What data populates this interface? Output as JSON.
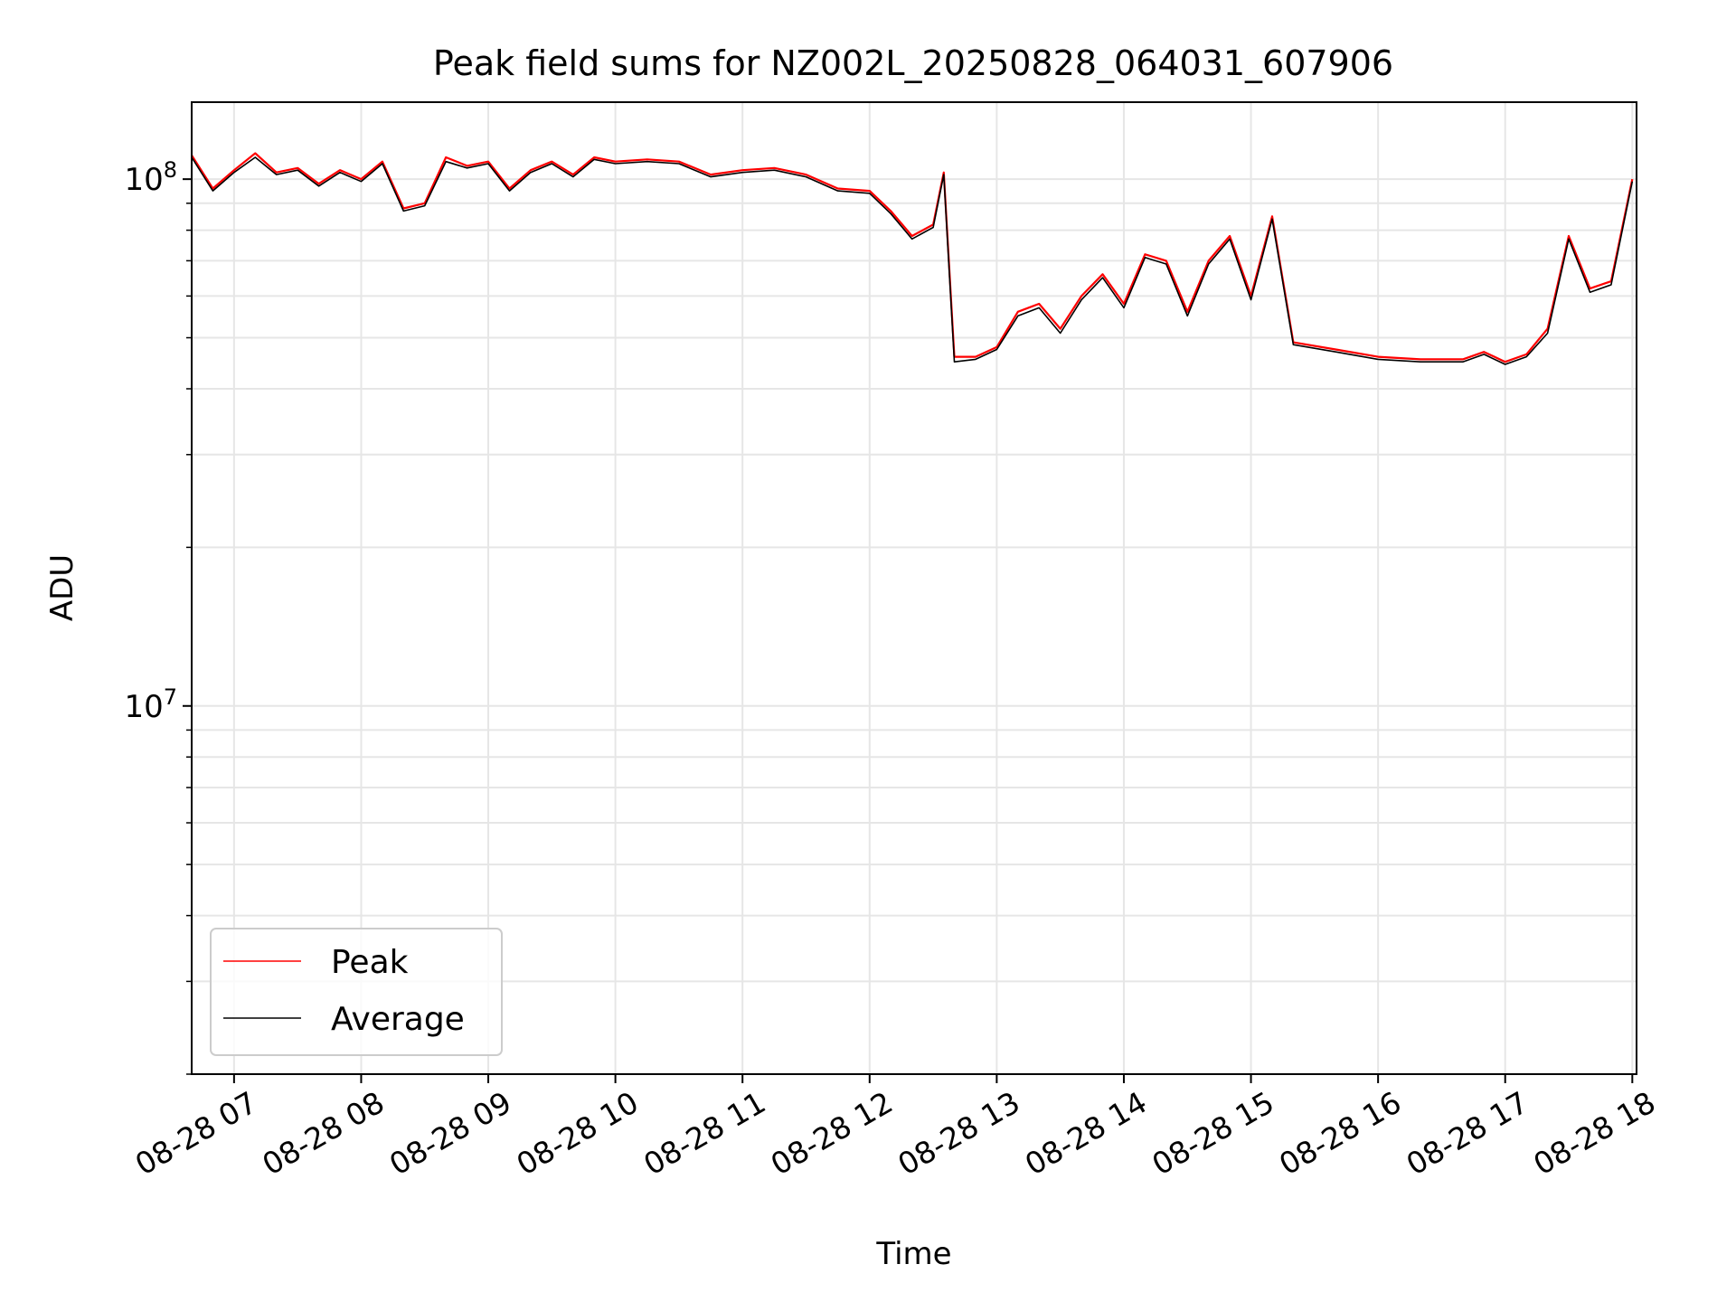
{
  "chart_data": {
    "type": "line",
    "title": "Peak field sums for NZ002L_20250828_064031_607906",
    "xlabel": "Time",
    "ylabel": "ADU",
    "yscale": "log",
    "ylim": [
      2000000,
      140000000
    ],
    "xlim": [
      "2025-08-28 06:40",
      "2025-08-28 18:02"
    ],
    "grid": true,
    "legend_position": "lower-left",
    "x_tick_labels": [
      "08-28 07",
      "08-28 08",
      "08-28 09",
      "08-28 10",
      "08-28 11",
      "08-28 12",
      "08-28 13",
      "08-28 14",
      "08-28 15",
      "08-28 16",
      "08-28 17",
      "08-28 18"
    ],
    "y_tick_labels": [
      {
        "base": "10",
        "exp": "7",
        "value": 10000000
      },
      {
        "base": "10",
        "exp": "8",
        "value": 100000000
      }
    ],
    "colors": {
      "Peak": "#ff0000",
      "Average": "#000000",
      "grid": "#e6e6e6"
    },
    "x": [
      "08-28 06:40",
      "08-28 06:50",
      "08-28 07:00",
      "08-28 07:10",
      "08-28 07:20",
      "08-28 07:30",
      "08-28 07:40",
      "08-28 07:50",
      "08-28 08:00",
      "08-28 08:10",
      "08-28 08:20",
      "08-28 08:30",
      "08-28 08:40",
      "08-28 08:50",
      "08-28 09:00",
      "08-28 09:10",
      "08-28 09:20",
      "08-28 09:30",
      "08-28 09:40",
      "08-28 09:50",
      "08-28 10:00",
      "08-28 10:15",
      "08-28 10:30",
      "08-28 10:45",
      "08-28 11:00",
      "08-28 11:15",
      "08-28 11:30",
      "08-28 11:45",
      "08-28 12:00",
      "08-28 12:10",
      "08-28 12:20",
      "08-28 12:30",
      "08-28 12:35",
      "08-28 12:40",
      "08-28 12:50",
      "08-28 13:00",
      "08-28 13:10",
      "08-28 13:20",
      "08-28 13:30",
      "08-28 13:40",
      "08-28 13:50",
      "08-28 14:00",
      "08-28 14:10",
      "08-28 14:20",
      "08-28 14:30",
      "08-28 14:40",
      "08-28 14:50",
      "08-28 15:00",
      "08-28 15:10",
      "08-28 15:20",
      "08-28 15:40",
      "08-28 16:00",
      "08-28 16:20",
      "08-28 16:40",
      "08-28 16:50",
      "08-28 17:00",
      "08-28 17:10",
      "08-28 17:20",
      "08-28 17:30",
      "08-28 17:40",
      "08-28 17:50",
      "08-28 18:00"
    ],
    "series": [
      {
        "name": "Peak",
        "values": [
          111000000,
          96000000,
          104000000,
          112000000,
          103000000,
          105000000,
          98000000,
          104000000,
          100000000,
          108000000,
          88000000,
          90000000,
          110000000,
          106000000,
          108000000,
          96000000,
          104000000,
          108000000,
          102000000,
          110000000,
          108000000,
          109000000,
          108000000,
          102000000,
          104000000,
          105000000,
          102000000,
          96000000,
          95000000,
          87000000,
          78000000,
          82000000,
          103000000,
          46000000,
          46000000,
          48000000,
          56000000,
          58000000,
          52000000,
          60000000,
          66000000,
          58000000,
          72000000,
          70000000,
          56000000,
          70000000,
          78000000,
          60000000,
          85000000,
          49000000,
          47500000,
          46000000,
          45500000,
          45500000,
          47000000,
          45000000,
          46500000,
          52000000,
          78000000,
          62000000,
          64000000,
          100000000
        ]
      },
      {
        "name": "Average",
        "values": [
          110000000,
          95000000,
          103000000,
          110000000,
          102000000,
          104000000,
          97000000,
          103000000,
          99000000,
          107000000,
          87000000,
          89000000,
          108000000,
          105000000,
          107000000,
          95000000,
          103000000,
          107000000,
          101000000,
          109000000,
          107000000,
          108000000,
          107000000,
          101000000,
          103000000,
          104000000,
          101000000,
          95000000,
          94000000,
          86000000,
          77000000,
          81000000,
          102000000,
          45000000,
          45500000,
          47500000,
          55000000,
          57000000,
          51000000,
          59000000,
          65000000,
          57000000,
          71000000,
          69000000,
          55000000,
          69000000,
          77000000,
          59000000,
          84000000,
          48500000,
          47000000,
          45500000,
          45000000,
          45000000,
          46500000,
          44500000,
          46000000,
          51000000,
          77000000,
          61000000,
          63000000,
          99000000
        ]
      }
    ]
  }
}
